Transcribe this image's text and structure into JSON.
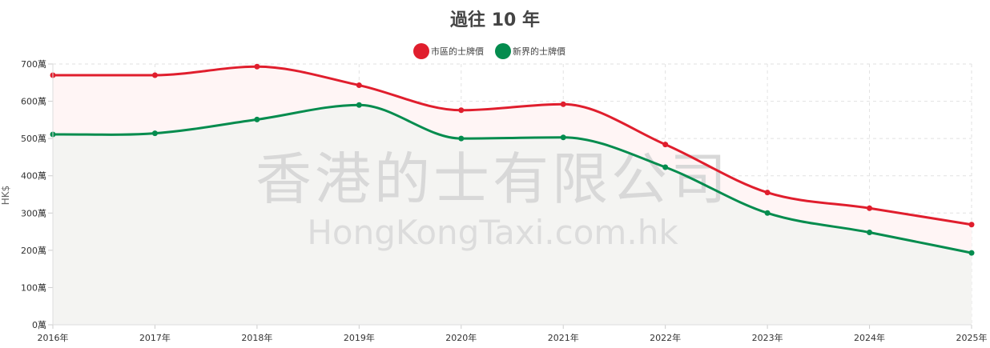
{
  "chart_data": {
    "type": "line",
    "title": "過往 10 年",
    "ylabel": "HK$",
    "xlabel": "",
    "categories": [
      "2016年",
      "2017年",
      "2018年",
      "2019年",
      "2020年",
      "2021年",
      "2022年",
      "2023年",
      "2024年",
      "2025年"
    ],
    "ylim": [
      0,
      700
    ],
    "y_ticks": [
      "0萬",
      "100萬",
      "200萬",
      "300萬",
      "400萬",
      "500萬",
      "600萬",
      "700萬"
    ],
    "y_tick_values": [
      0,
      100,
      200,
      300,
      400,
      500,
      600,
      700
    ],
    "grid": true,
    "legend_position": "top-center",
    "series": [
      {
        "name": "市區的士牌價",
        "color": "#e01e2d",
        "fill": "#fff5f5",
        "values": [
          670,
          670,
          693,
          643,
          576,
          592,
          484,
          355,
          313,
          269
        ]
      },
      {
        "name": "新界的士牌價",
        "color": "#048c4e",
        "fill": "#f4f4f2",
        "values": [
          511,
          514,
          551,
          590,
          500,
          503,
          423,
          300,
          248,
          193
        ]
      }
    ]
  },
  "watermark": {
    "line1": "香港的士有限公司",
    "line2": "HongKongTaxi.com.hk"
  }
}
